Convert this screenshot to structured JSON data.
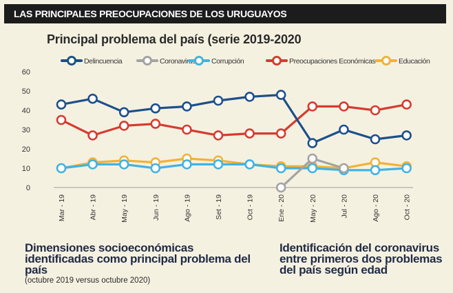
{
  "header": {
    "banner": "LAS PRINCIPALES PREOCUPACIONES DE LOS URUGUAYOS"
  },
  "chart_data": {
    "type": "line",
    "title": "Principal problema del país (serie 2019-2020",
    "categories": [
      "Mar - 19",
      "Abr - 19",
      "May - 19",
      "Jun - 19",
      "Ago - 19",
      "Set - 19",
      "Oct - 19",
      "Ene - 20",
      "May - 20",
      "Jul - 20",
      "Ago - 20",
      "Oct - 20"
    ],
    "ylim": [
      0,
      60
    ],
    "yticks": [
      0,
      10,
      20,
      30,
      40,
      50,
      60
    ],
    "legend_position": "top",
    "series": [
      {
        "name": "Delincuencia",
        "color": "#1d4f8c",
        "values": [
          43,
          46,
          39,
          41,
          42,
          45,
          47,
          48,
          23,
          30,
          25,
          27
        ]
      },
      {
        "name": "Coronavirus",
        "color": "#a3a3a3",
        "values": [
          null,
          null,
          null,
          null,
          null,
          null,
          null,
          0,
          15,
          10,
          null,
          null
        ]
      },
      {
        "name": "Corrupción",
        "color": "#3fb3e6",
        "values": [
          10,
          12,
          12,
          10,
          12,
          12,
          12,
          10,
          10,
          9,
          9,
          10
        ]
      },
      {
        "name": "Preocupaciones Económicas",
        "color": "#d63b2f",
        "values": [
          35,
          27,
          32,
          33,
          30,
          27,
          28,
          28,
          42,
          42,
          40,
          43
        ]
      },
      {
        "name": "Educación",
        "color": "#f2b234",
        "values": [
          10,
          13,
          14,
          13,
          15,
          14,
          12,
          11,
          11,
          10,
          13,
          11
        ]
      }
    ]
  },
  "footer": {
    "left_heading": "Dimensiones socioeconómicas identificadas como principal problema del país",
    "left_note": "(octubre 2019 versus octubre 2020)",
    "right_heading": "Identificación del coronavirus entre primeros dos problemas del país según edad"
  }
}
